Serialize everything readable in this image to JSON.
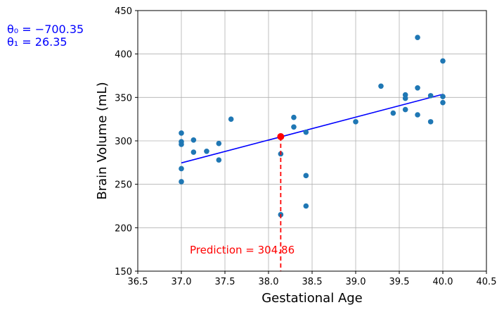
{
  "chart_data": {
    "type": "scatter",
    "title": "",
    "xlabel": "Gestational Age",
    "ylabel": "Brain Volume (mL)",
    "xlim": [
      36.5,
      40.5
    ],
    "ylim": [
      150,
      450
    ],
    "xticks": [
      36.5,
      37.0,
      37.5,
      38.0,
      38.5,
      39.0,
      39.5,
      40.0,
      40.5
    ],
    "yticks": [
      150,
      200,
      250,
      300,
      350,
      400,
      450
    ],
    "grid": true,
    "point_color": "#1f77b4",
    "points": [
      {
        "x": 37.0,
        "y": 309
      },
      {
        "x": 37.0,
        "y": 299
      },
      {
        "x": 37.0,
        "y": 296
      },
      {
        "x": 37.0,
        "y": 268
      },
      {
        "x": 37.0,
        "y": 253
      },
      {
        "x": 37.14,
        "y": 301
      },
      {
        "x": 37.14,
        "y": 287
      },
      {
        "x": 37.29,
        "y": 288
      },
      {
        "x": 37.43,
        "y": 297
      },
      {
        "x": 37.43,
        "y": 278
      },
      {
        "x": 37.57,
        "y": 325
      },
      {
        "x": 38.14,
        "y": 285
      },
      {
        "x": 38.14,
        "y": 215
      },
      {
        "x": 38.29,
        "y": 327
      },
      {
        "x": 38.29,
        "y": 316
      },
      {
        "x": 38.43,
        "y": 310
      },
      {
        "x": 38.43,
        "y": 260
      },
      {
        "x": 38.43,
        "y": 225
      },
      {
        "x": 39.0,
        "y": 322
      },
      {
        "x": 39.29,
        "y": 363
      },
      {
        "x": 39.43,
        "y": 332
      },
      {
        "x": 39.57,
        "y": 353
      },
      {
        "x": 39.57,
        "y": 349
      },
      {
        "x": 39.57,
        "y": 336
      },
      {
        "x": 39.71,
        "y": 419
      },
      {
        "x": 39.71,
        "y": 361
      },
      {
        "x": 39.71,
        "y": 330
      },
      {
        "x": 39.86,
        "y": 352
      },
      {
        "x": 39.86,
        "y": 322
      },
      {
        "x": 40.0,
        "y": 392
      },
      {
        "x": 40.0,
        "y": 351
      },
      {
        "x": 40.0,
        "y": 344
      }
    ],
    "fit_line": {
      "x": [
        37.0,
        40.0
      ],
      "y": [
        274.6,
        353.6
      ],
      "color": "#0000ff"
    },
    "prediction": {
      "x": 38.14,
      "y": 304.86,
      "color": "#ff0000",
      "label": "Prediction = 304.86"
    },
    "annotations": {
      "theta0": "θ₀ = −700.35",
      "theta1": "θ₁ = 26.35",
      "color": "#0000ff"
    }
  }
}
